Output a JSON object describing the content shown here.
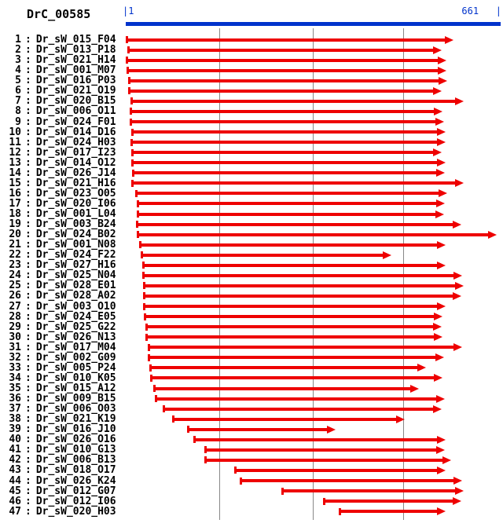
{
  "header": {
    "title": "DrC_00585"
  },
  "ruler": {
    "start_tick": "|1",
    "end_tick": "661   |",
    "min": 1,
    "max": 661
  },
  "colors": {
    "blue": "#0033cc",
    "red": "#ee0000",
    "grid": "#888888",
    "text": "#000000"
  },
  "chart_data": {
    "type": "bar",
    "subtype": "horizontal-range-alignment",
    "title": "DrC_00585",
    "xlabel": "",
    "ylabel": "",
    "xlim": [
      1,
      661
    ],
    "grid": true,
    "gridlines_x": [
      165,
      330,
      490
    ],
    "legend": false,
    "rows": [
      {
        "n": 1,
        "name": "Dr_sW_015_F04",
        "start": 1,
        "end": 578
      },
      {
        "n": 2,
        "name": "Dr_sW_013_P18",
        "start": 4,
        "end": 557
      },
      {
        "n": 3,
        "name": "Dr_sW_021_H14",
        "start": 1,
        "end": 565
      },
      {
        "n": 4,
        "name": "Dr_sW_001_M07",
        "start": 2,
        "end": 565
      },
      {
        "n": 5,
        "name": "Dr_sW_016_P03",
        "start": 5,
        "end": 567
      },
      {
        "n": 6,
        "name": "Dr_sW_021_O19",
        "start": 5,
        "end": 557
      },
      {
        "n": 7,
        "name": "Dr_sW_020_B15",
        "start": 9,
        "end": 596
      },
      {
        "n": 8,
        "name": "Dr_sW_006_O11",
        "start": 8,
        "end": 559
      },
      {
        "n": 9,
        "name": "Dr_sW_024_F01",
        "start": 8,
        "end": 561
      },
      {
        "n": 10,
        "name": "Dr_sW_014_D16",
        "start": 11,
        "end": 564
      },
      {
        "n": 11,
        "name": "Dr_sW_024_H03",
        "start": 9,
        "end": 564
      },
      {
        "n": 12,
        "name": "Dr_sW_017_I23",
        "start": 11,
        "end": 557
      },
      {
        "n": 13,
        "name": "Dr_sW_014_O12",
        "start": 11,
        "end": 564
      },
      {
        "n": 14,
        "name": "Dr_sW_026_J14",
        "start": 12,
        "end": 563
      },
      {
        "n": 15,
        "name": "Dr_sW_021_H16",
        "start": 11,
        "end": 596
      },
      {
        "n": 16,
        "name": "Dr_sW_023_O05",
        "start": 18,
        "end": 567
      },
      {
        "n": 17,
        "name": "Dr_sW_020_I06",
        "start": 20,
        "end": 563
      },
      {
        "n": 18,
        "name": "Dr_sW_001_L04",
        "start": 20,
        "end": 561
      },
      {
        "n": 19,
        "name": "Dr_sW_003_B24",
        "start": 19,
        "end": 592
      },
      {
        "n": 20,
        "name": "Dr_sW_024_B02",
        "start": 20,
        "end": 654
      },
      {
        "n": 21,
        "name": "Dr_sW_001_N08",
        "start": 25,
        "end": 564
      },
      {
        "n": 22,
        "name": "Dr_sW_024_F22",
        "start": 27,
        "end": 469
      },
      {
        "n": 23,
        "name": "Dr_sW_027_H16",
        "start": 30,
        "end": 564
      },
      {
        "n": 24,
        "name": "Dr_sW_025_N04",
        "start": 30,
        "end": 593
      },
      {
        "n": 25,
        "name": "Dr_sW_028_E01",
        "start": 31,
        "end": 596
      },
      {
        "n": 26,
        "name": "Dr_sW_028_A02",
        "start": 31,
        "end": 592
      },
      {
        "n": 27,
        "name": "Dr_sW_003_O10",
        "start": 31,
        "end": 564
      },
      {
        "n": 28,
        "name": "Dr_sW_024_E05",
        "start": 33,
        "end": 559
      },
      {
        "n": 29,
        "name": "Dr_sW_025_G22",
        "start": 36,
        "end": 557
      },
      {
        "n": 30,
        "name": "Dr_sW_026_N13",
        "start": 36,
        "end": 559
      },
      {
        "n": 31,
        "name": "Dr_sW_017_M04",
        "start": 40,
        "end": 593
      },
      {
        "n": 32,
        "name": "Dr_sW_002_G09",
        "start": 40,
        "end": 561
      },
      {
        "n": 33,
        "name": "Dr_sW_005_P24",
        "start": 43,
        "end": 530
      },
      {
        "n": 34,
        "name": "Dr_sW_010_K05",
        "start": 44,
        "end": 559
      },
      {
        "n": 35,
        "name": "Dr_sW_015_A12",
        "start": 49,
        "end": 517
      },
      {
        "n": 36,
        "name": "Dr_sW_009_B15",
        "start": 52,
        "end": 563
      },
      {
        "n": 37,
        "name": "Dr_sW_006_O03",
        "start": 66,
        "end": 557
      },
      {
        "n": 38,
        "name": "Dr_sW_021_K19",
        "start": 83,
        "end": 492
      },
      {
        "n": 39,
        "name": "Dr_sW_016_J10",
        "start": 109,
        "end": 370
      },
      {
        "n": 40,
        "name": "Dr_sW_026_O16",
        "start": 120,
        "end": 564
      },
      {
        "n": 41,
        "name": "Dr_sW_010_G13",
        "start": 139,
        "end": 563
      },
      {
        "n": 42,
        "name": "Dr_sW_006_B13",
        "start": 139,
        "end": 574
      },
      {
        "n": 43,
        "name": "Dr_sW_018_O17",
        "start": 192,
        "end": 564
      },
      {
        "n": 44,
        "name": "Dr_sW_026_K24",
        "start": 202,
        "end": 593
      },
      {
        "n": 45,
        "name": "Dr_sW_012_G07",
        "start": 275,
        "end": 596
      },
      {
        "n": 46,
        "name": "Dr_sW_012_I06",
        "start": 348,
        "end": 592
      },
      {
        "n": 47,
        "name": "Dr_sW_020_H03",
        "start": 376,
        "end": 564
      }
    ]
  }
}
